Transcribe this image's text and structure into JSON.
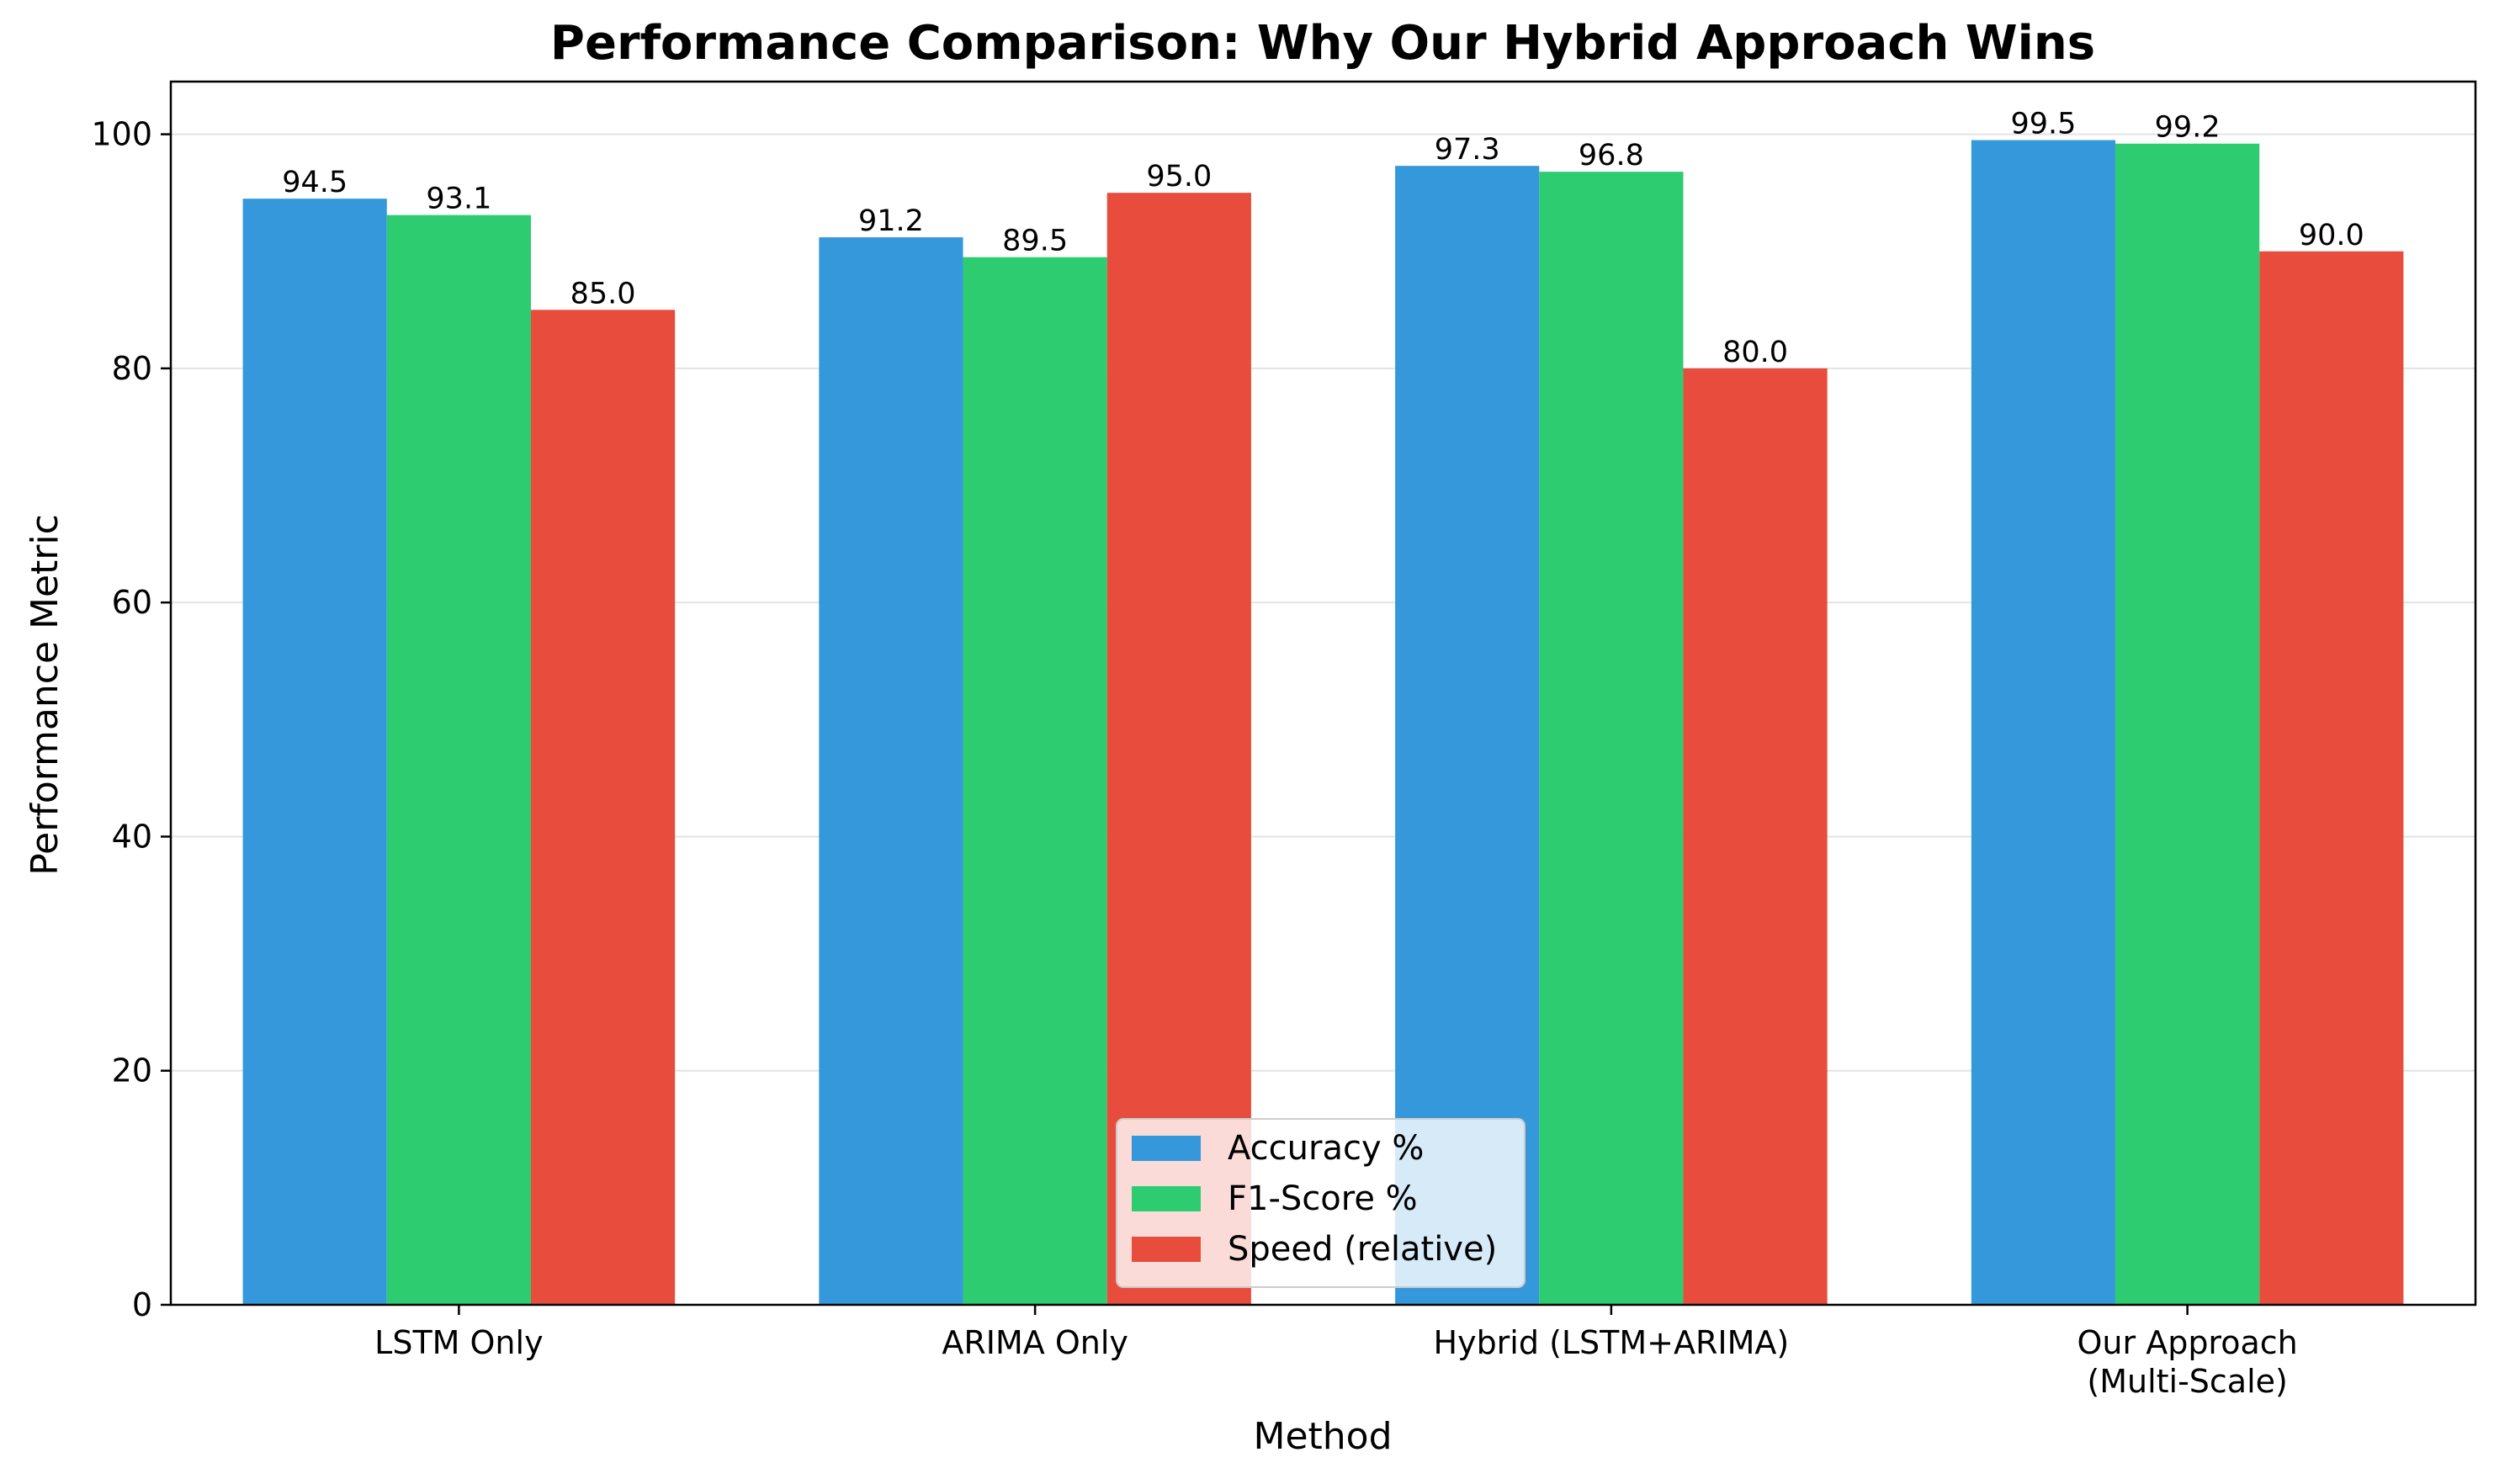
{
  "chart_data": {
    "type": "bar",
    "title": "Performance Comparison: Why Our Hybrid Approach Wins",
    "xlabel": "Method",
    "ylabel": "Performance Metric",
    "categories": [
      [
        "LSTM Only"
      ],
      [
        "ARIMA Only"
      ],
      [
        "Hybrid (LSTM+ARIMA)"
      ],
      [
        "Our Approach",
        "(Multi-Scale)"
      ]
    ],
    "series": [
      {
        "name": "Accuracy %",
        "color": "#3498db",
        "values": [
          94.5,
          91.2,
          97.3,
          99.5
        ]
      },
      {
        "name": "F1-Score %",
        "color": "#2ecc71",
        "values": [
          93.1,
          89.5,
          96.8,
          99.2
        ]
      },
      {
        "name": "Speed (relative)",
        "color": "#e74c3c",
        "values": [
          85.0,
          95.0,
          80.0,
          90.0
        ]
      }
    ],
    "ylim": [
      0,
      104.5
    ],
    "yticks": [
      0,
      20,
      40,
      60,
      80,
      100
    ],
    "grid": "y",
    "legend_position": "bottom-center",
    "value_labels": true
  }
}
